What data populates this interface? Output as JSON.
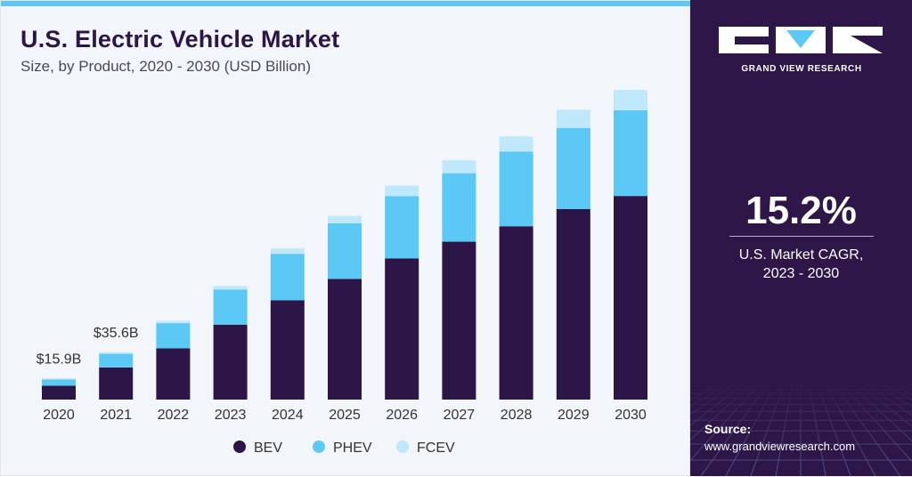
{
  "header": {
    "title": "U.S. Electric Vehicle Market",
    "subtitle": "Size, by Product, 2020 - 2030 (USD Billion)"
  },
  "chart_data": {
    "type": "bar",
    "stacked": true,
    "categories": [
      "2020",
      "2021",
      "2022",
      "2023",
      "2024",
      "2025",
      "2026",
      "2027",
      "2028",
      "2029",
      "2030"
    ],
    "series": [
      {
        "name": "BEV",
        "color": "#2c1547",
        "values": [
          10.4,
          24.2,
          38.5,
          56.4,
          74.7,
          90.8,
          106.1,
          118.8,
          130.4,
          143.3,
          153.2
        ]
      },
      {
        "name": "PHEV",
        "color": "#5bc8f5",
        "values": [
          4.7,
          10.2,
          19.0,
          26.4,
          35.0,
          41.9,
          47.0,
          51.5,
          56.3,
          61.1,
          64.5
        ]
      },
      {
        "name": "FCEV",
        "color": "#bfe8fb",
        "values": [
          0.8,
          1.2,
          1.8,
          2.6,
          4.0,
          5.4,
          7.9,
          9.9,
          11.3,
          13.7,
          15.3
        ]
      }
    ],
    "data_labels": [
      {
        "category": "2020",
        "text": "$15.9B"
      },
      {
        "category": "2021",
        "text": "$35.6B"
      }
    ],
    "ylim": [
      0,
      233
    ],
    "grid": false,
    "legend": "bottom-center",
    "xlabel": "",
    "ylabel": ""
  },
  "sidebar": {
    "logo_text": "GRAND VIEW RESEARCH",
    "cagr_value": "15.2%",
    "cagr_label_line1": "U.S. Market CAGR,",
    "cagr_label_line2": "2023 - 2030",
    "source_label": "Source:",
    "source_url": "www.grandviewresearch.com"
  }
}
